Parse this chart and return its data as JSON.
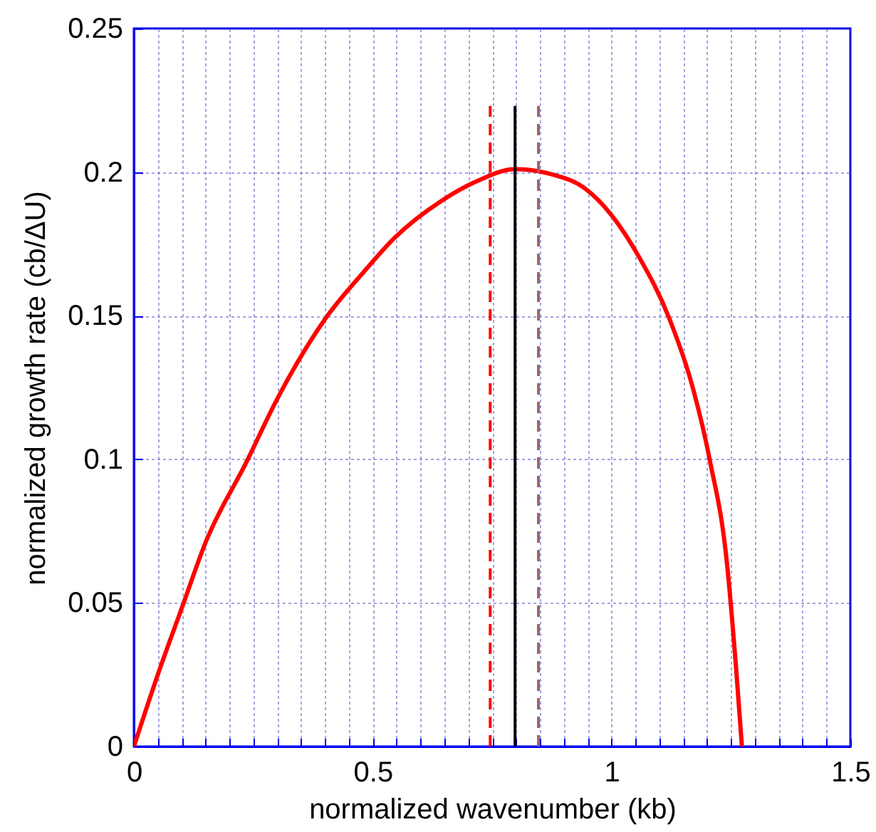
{
  "chart_data": {
    "type": "line",
    "xlabel": "normalized wavenumber (kb)",
    "ylabel": "normalized growth rate (cb/ΔU)",
    "xlim": [
      0,
      1.5
    ],
    "ylim": [
      0,
      0.25
    ],
    "xticks": [
      0,
      {
        "value": 0.05,
        "label": null
      },
      {
        "value": 0.1,
        "label": null
      },
      {
        "value": 0.15,
        "label": null
      },
      {
        "value": 0.2,
        "label": null
      },
      {
        "value": 0.25,
        "label": null
      },
      {
        "value": 0.3,
        "label": null
      },
      {
        "value": 0.35,
        "label": null
      },
      {
        "value": 0.4,
        "label": null
      },
      {
        "value": 0.45,
        "label": null
      },
      0.5,
      {
        "value": 0.55,
        "label": null
      },
      {
        "value": 0.6,
        "label": null
      },
      {
        "value": 0.65,
        "label": null
      },
      {
        "value": 0.7,
        "label": null
      },
      {
        "value": 0.75,
        "label": null
      },
      {
        "value": 0.8,
        "label": null
      },
      {
        "value": 0.85,
        "label": null
      },
      {
        "value": 0.9,
        "label": null
      },
      {
        "value": 0.95,
        "label": null
      },
      1,
      {
        "value": 1.05,
        "label": null
      },
      {
        "value": 1.1,
        "label": null
      },
      {
        "value": 1.15,
        "label": null
      },
      {
        "value": 1.2,
        "label": null
      },
      {
        "value": 1.25,
        "label": null
      },
      {
        "value": 1.3,
        "label": null
      },
      {
        "value": 1.35,
        "label": null
      },
      {
        "value": 1.4,
        "label": null
      },
      {
        "value": 1.45,
        "label": null
      },
      1.5
    ],
    "yticks": [
      0,
      0.05,
      0.1,
      0.15,
      0.2,
      0.25
    ],
    "grid": true,
    "line_style": "solid",
    "series": [
      {
        "color": "#ff0000",
        "x": [
          0,
          0.05,
          0.102,
          0.15,
          0.237,
          0.3,
          0.401,
          0.48,
          0.545,
          0.644,
          0.72,
          0.798,
          0.88,
          0.942,
          1.0,
          1.057,
          1.121,
          1.17,
          1.206,
          1.241,
          1.261,
          1.273
        ],
        "values": [
          0,
          0.025,
          0.049,
          0.071,
          0.0995,
          0.121,
          0.149,
          0.165,
          0.177,
          0.19,
          0.197,
          0.201,
          0.199,
          0.1946,
          0.185,
          0.1706,
          0.149,
          0.125,
          0.0995,
          0.0648,
          0.0268,
          0
        ]
      },
      {
        "color": "#ff0000",
        "line_style": "dashed",
        "x": [
          0.746,
          0.746
        ],
        "values": [
          0,
          0.223
        ]
      },
      {
        "color": "#000000",
        "x": [
          0.798,
          0.798
        ],
        "values": [
          0,
          0.223
        ]
      },
      {
        "color": "#996666",
        "line_style": "dashed",
        "x": [
          0.847,
          0.847
        ],
        "values": [
          0,
          0.223
        ]
      }
    ]
  }
}
